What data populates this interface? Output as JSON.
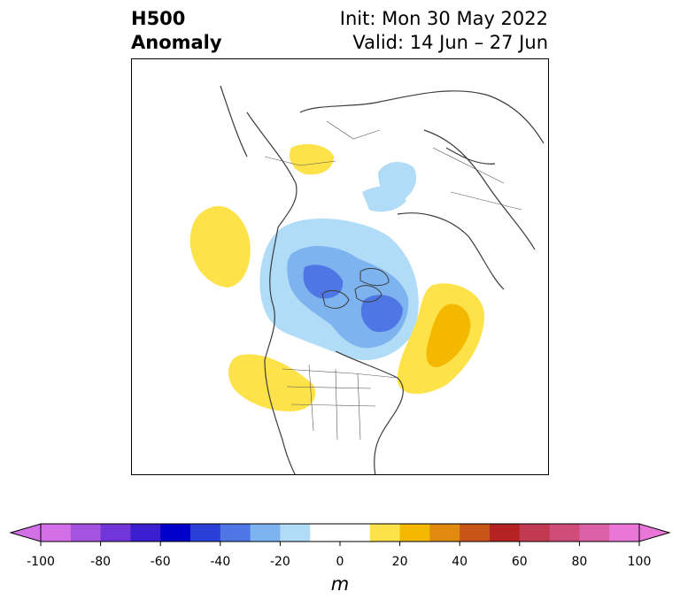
{
  "title": {
    "left_line1": "H500",
    "left_line2": "Anomaly",
    "right_line1": "Init: Mon 30 May 2022",
    "right_line2": "Valid: 14 Jun – 27 Jun"
  },
  "colorbar": {
    "unit": "m",
    "ticks": [
      "-100",
      "-80",
      "-60",
      "-40",
      "-20",
      "0",
      "20",
      "40",
      "60",
      "80",
      "100"
    ],
    "colors": [
      "#d370e8",
      "#a552e0",
      "#7236d8",
      "#3a1ed0",
      "#0000c8",
      "#2a3ed8",
      "#4e76e4",
      "#7db4f0",
      "#b0dcf8",
      "#ffffff",
      "#ffffff",
      "#fde24a",
      "#f4b800",
      "#e08a10",
      "#c95418",
      "#b42222",
      "#c23a52",
      "#d04c78",
      "#dc62a8",
      "#e976d8"
    ],
    "extend": "both"
  },
  "map": {
    "projection": "polar stereographic (North)",
    "anomaly_colors": {
      "light_blue": "#b0dcf8",
      "mid_blue": "#7db4f0",
      "blue": "#4e76e4",
      "yellow": "#fde24a",
      "gold": "#f4b800"
    }
  }
}
